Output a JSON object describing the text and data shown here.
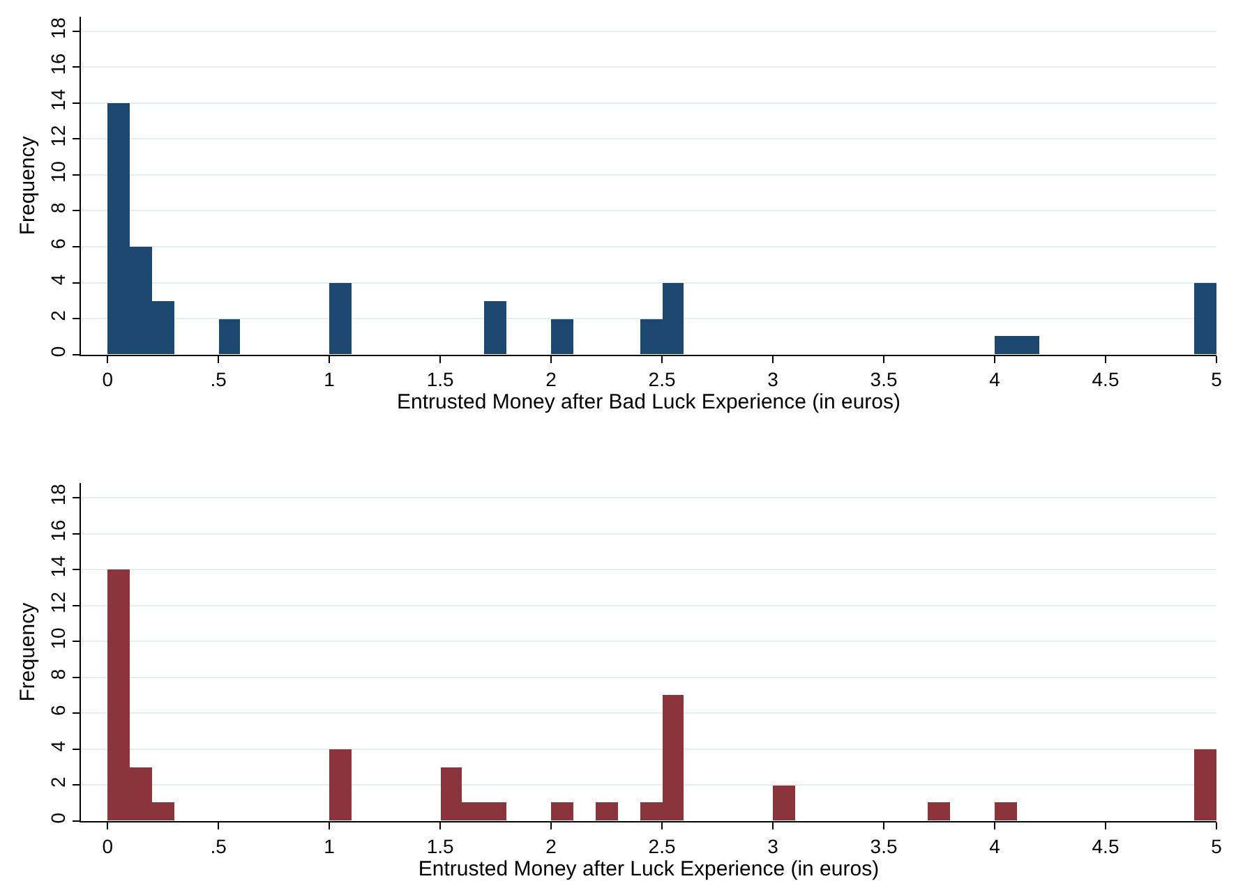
{
  "chart_data": [
    {
      "type": "histogram",
      "xlabel": "Entrusted Money after Bad Luck Experience (in euros)",
      "ylabel": "Frequency",
      "color": "#1c4870",
      "bins": [
        0,
        0.1,
        0.2,
        0.3,
        0.4,
        0.5,
        0.6,
        0.7,
        0.8,
        0.9,
        1.0,
        1.1,
        1.2,
        1.3,
        1.4,
        1.5,
        1.6,
        1.7,
        1.8,
        1.9,
        2.0,
        2.1,
        2.2,
        2.3,
        2.4,
        2.5,
        2.6,
        2.7,
        2.8,
        2.9,
        3.0,
        3.1,
        3.2,
        3.3,
        3.4,
        3.5,
        3.6,
        3.7,
        3.8,
        3.9,
        4.0,
        4.1,
        4.2,
        4.3,
        4.4,
        4.5,
        4.6,
        4.7,
        4.8,
        4.9,
        5.0
      ],
      "values": [
        14,
        6,
        3,
        0,
        0,
        2,
        0,
        0,
        0,
        0,
        4,
        0,
        0,
        0,
        0,
        0,
        0,
        3,
        0,
        0,
        2,
        0,
        0,
        0,
        2,
        4,
        0,
        0,
        0,
        0,
        0,
        0,
        0,
        0,
        0,
        0,
        0,
        0,
        0,
        0,
        1,
        1,
        0,
        0,
        0,
        0,
        0,
        0,
        0,
        4
      ],
      "xlim": [
        -0.12,
        5.0
      ],
      "xticks": [
        0,
        {
          "value": 0.5,
          "label": ".5"
        },
        1,
        1.5,
        2,
        2.5,
        3,
        3.5,
        4,
        4.5,
        5
      ],
      "ylim": [
        0,
        18.8
      ],
      "yticks": [
        0,
        2,
        4,
        6,
        8,
        10,
        12,
        14,
        16,
        18
      ],
      "grid": "y"
    },
    {
      "type": "histogram",
      "xlabel": "Entrusted Money after Luck Experience (in euros)",
      "ylabel": "Frequency",
      "color": "#8b343c",
      "bins": [
        0,
        0.1,
        0.2,
        0.3,
        0.4,
        0.5,
        0.6,
        0.7,
        0.8,
        0.9,
        1.0,
        1.1,
        1.2,
        1.3,
        1.4,
        1.5,
        1.6,
        1.7,
        1.8,
        1.9,
        2.0,
        2.1,
        2.2,
        2.3,
        2.4,
        2.5,
        2.6,
        2.7,
        2.8,
        2.9,
        3.0,
        3.1,
        3.2,
        3.3,
        3.4,
        3.5,
        3.6,
        3.7,
        3.8,
        3.9,
        4.0,
        4.1,
        4.2,
        4.3,
        4.4,
        4.5,
        4.6,
        4.7,
        4.8,
        4.9,
        5.0
      ],
      "values": [
        14,
        3,
        1,
        0,
        0,
        0,
        0,
        0,
        0,
        0,
        4,
        0,
        0,
        0,
        0,
        3,
        1,
        1,
        0,
        0,
        1,
        0,
        1,
        0,
        1,
        7,
        0,
        0,
        0,
        0,
        2,
        0,
        0,
        0,
        0,
        0,
        0,
        1,
        0,
        0,
        1,
        0,
        0,
        0,
        0,
        0,
        0,
        0,
        0,
        4
      ],
      "xlim": [
        -0.12,
        5.0
      ],
      "xticks": [
        0,
        {
          "value": 0.5,
          "label": ".5"
        },
        1,
        1.5,
        2,
        2.5,
        3,
        3.5,
        4,
        4.5,
        5
      ],
      "ylim": [
        0,
        18.8
      ],
      "yticks": [
        0,
        2,
        4,
        6,
        8,
        10,
        12,
        14,
        16,
        18
      ],
      "grid": "y"
    }
  ]
}
